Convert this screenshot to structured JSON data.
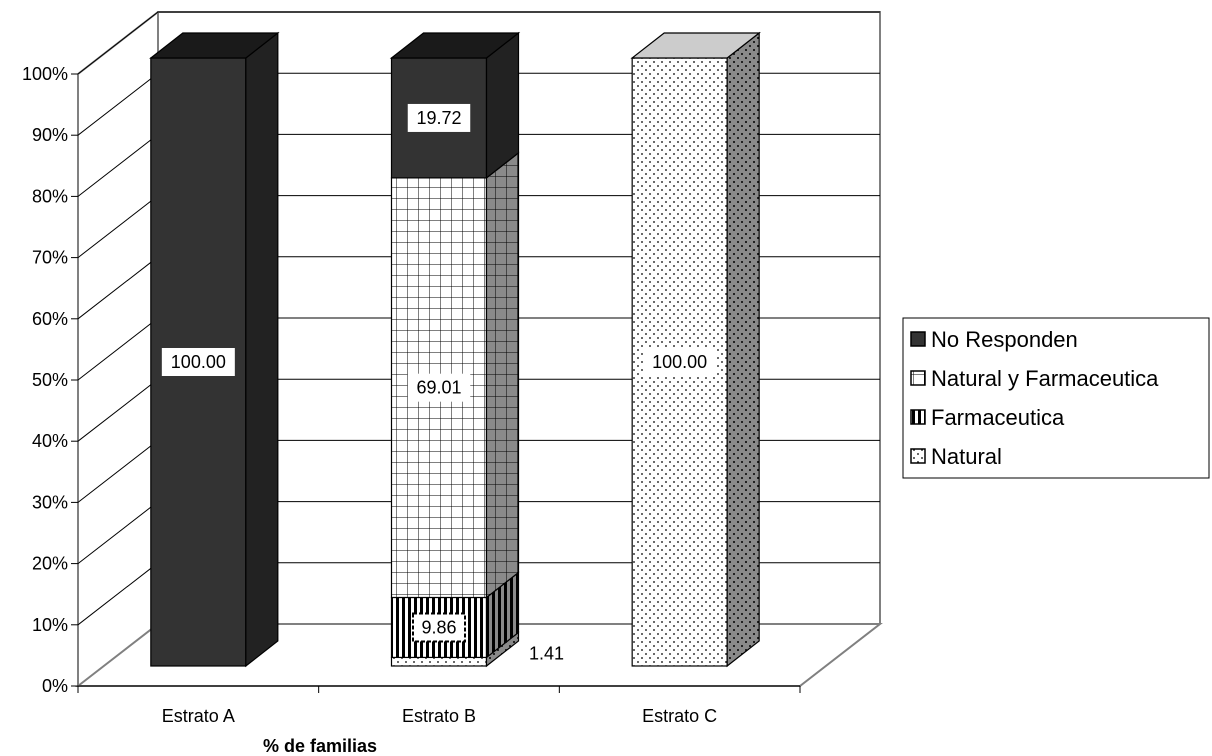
{
  "chart_data": {
    "type": "bar",
    "stacked": true,
    "percent_stacked": true,
    "three_d": true,
    "categories": [
      "Estrato A",
      "Estrato B",
      "Estrato C"
    ],
    "series": [
      {
        "name": "Natural",
        "values": [
          0,
          1.41,
          100.0
        ],
        "labels": [
          "",
          "1.41",
          "100.00"
        ]
      },
      {
        "name": "Farmaceutica",
        "values": [
          0,
          9.86,
          0
        ],
        "labels": [
          "",
          "9.86",
          ""
        ]
      },
      {
        "name": "Natural y Farmaceutica",
        "values": [
          0,
          69.01,
          0
        ],
        "labels": [
          "",
          "69.01",
          ""
        ]
      },
      {
        "name": "No Responden",
        "values": [
          100.0,
          19.72,
          0
        ],
        "labels": [
          "100.00",
          "19.72",
          ""
        ]
      }
    ],
    "yticks": [
      "0%",
      "10%",
      "20%",
      "30%",
      "40%",
      "50%",
      "60%",
      "70%",
      "80%",
      "90%",
      "100%"
    ],
    "ylim": [
      0,
      100
    ],
    "xlabel": "% de familias",
    "ylabel": "",
    "grid": true,
    "legend_position": "right",
    "legend_order": [
      "No Responden",
      "Natural y Farmaceutica",
      "Farmaceutica",
      "Natural"
    ],
    "colors": {
      "No Responden": "#333333",
      "Natural y Farmaceutica": "#ffffff",
      "Farmaceutica": "#ffffff",
      "Natural": "#ffffff",
      "grid": "#000000",
      "wall": "#808080"
    }
  }
}
